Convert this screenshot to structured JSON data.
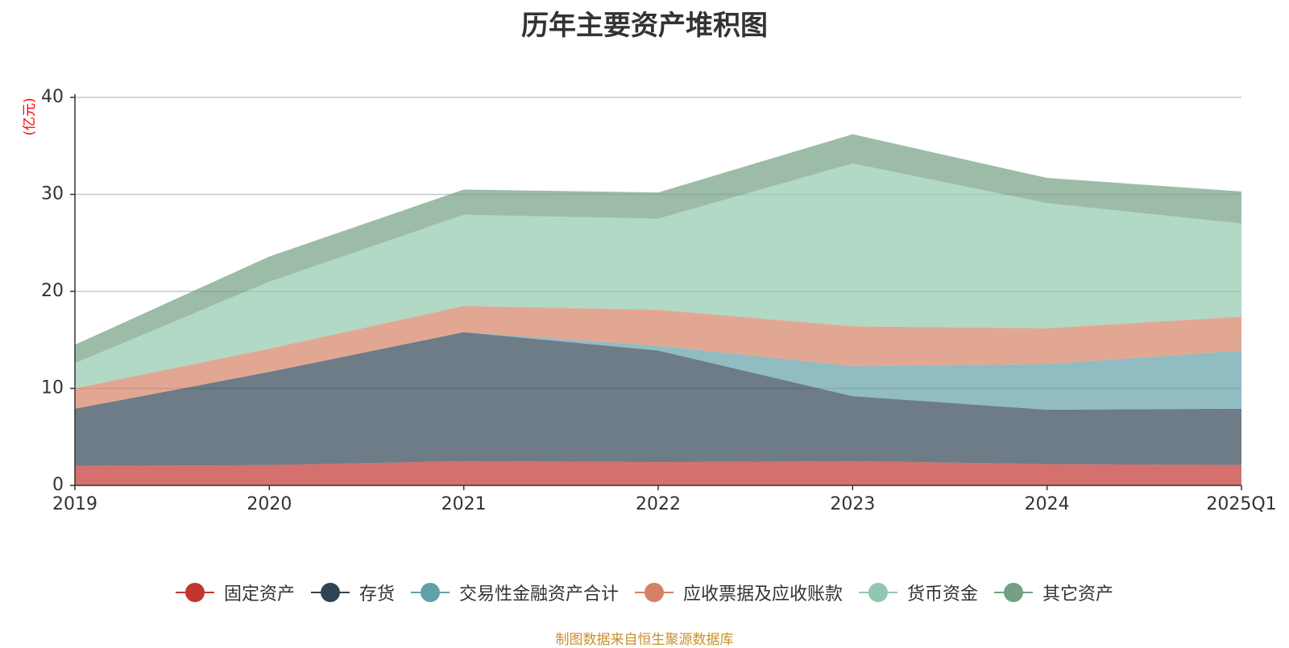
{
  "chart_data": {
    "type": "area",
    "stacked": true,
    "title": "历年主要资产堆积图",
    "ylabel": "(亿元)",
    "xlabel": "",
    "categories": [
      "2019",
      "2020",
      "2021",
      "2022",
      "2023",
      "2024",
      "2025Q1"
    ],
    "ylim": [
      0,
      40
    ],
    "yticks": [
      0,
      10,
      20,
      30,
      40
    ],
    "grid": true,
    "legend_position": "bottom",
    "series": [
      {
        "name": "固定资产",
        "color": "#c23531",
        "values": [
          2.0,
          2.1,
          2.5,
          2.4,
          2.5,
          2.2,
          2.1
        ]
      },
      {
        "name": "存货",
        "color": "#2f4554",
        "values": [
          5.9,
          9.6,
          13.3,
          11.5,
          6.7,
          5.6,
          5.8
        ]
      },
      {
        "name": "交易性金融资产合计",
        "color": "#61a0a8",
        "values": [
          0.0,
          0.0,
          0.0,
          0.5,
          3.1,
          4.7,
          6.0
        ]
      },
      {
        "name": "应收票据及应收账款",
        "color": "#d48265",
        "values": [
          2.1,
          2.4,
          2.7,
          3.7,
          4.1,
          3.7,
          3.5
        ]
      },
      {
        "name": "货币资金",
        "color": "#91c7ae",
        "values": [
          2.6,
          6.9,
          9.4,
          9.4,
          16.8,
          12.9,
          9.6
        ]
      },
      {
        "name": "其它资产",
        "color": "#749f83",
        "values": [
          1.9,
          2.6,
          2.6,
          2.7,
          3.0,
          2.6,
          3.3
        ]
      }
    ]
  },
  "footer": "制图数据来自恒生聚源数据库"
}
